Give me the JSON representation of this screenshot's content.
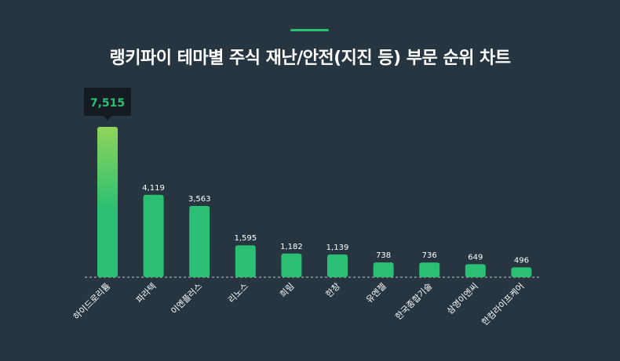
{
  "title": "랭키파이 테마별 주식 재난/안전(지진 등) 부문 순위 차트",
  "colors": {
    "background": "#263540",
    "accent": "#2bbf73",
    "bar": "#2bbf73",
    "bar_top_gradient": "#8fd45a",
    "label": "#ffffff",
    "tooltip_bg": "#141c22",
    "tooltip_text": "#2bbf73",
    "baseline": "#c7cdd1"
  },
  "chart_data": {
    "type": "bar",
    "title": "랭키파이 테마별 주식 재난/안전(지진 등) 부문 순위 차트",
    "categories": [
      "하이드로리튬",
      "파라텍",
      "이엔플러스",
      "리노스",
      "희림",
      "한창",
      "유엔젤",
      "한국종합기술",
      "삼영이엔씨",
      "한컴라이프케어"
    ],
    "values": [
      7515,
      4119,
      3563,
      1595,
      1182,
      1139,
      738,
      736,
      649,
      496
    ],
    "value_labels": [
      "7,515",
      "4,119",
      "3,563",
      "1,595",
      "1,182",
      "1,139",
      "738",
      "736",
      "649",
      "496"
    ],
    "highlight_index": 0,
    "ylim": [
      0,
      7515
    ],
    "grid": false,
    "legend": "none"
  }
}
